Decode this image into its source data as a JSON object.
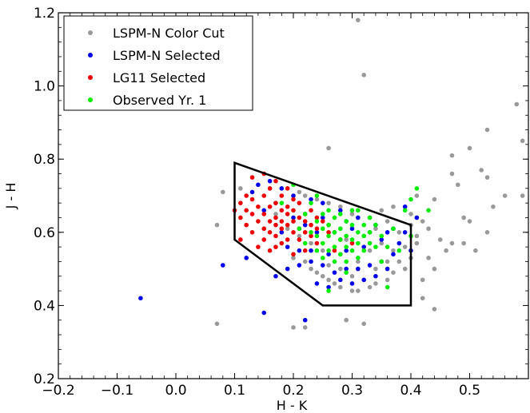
{
  "chart_data": {
    "type": "scatter",
    "xlabel": "H - K",
    "ylabel": "J - H",
    "xlim": [
      -0.2,
      0.6
    ],
    "ylim": [
      0.2,
      1.2
    ],
    "x_ticks": [
      -0.2,
      -0.1,
      0.0,
      0.1,
      0.2,
      0.3,
      0.4,
      0.5
    ],
    "x_tick_labels": [
      "−0.2",
      "−0.1",
      "0.0",
      "0.1",
      "0.2",
      "0.3",
      "0.4",
      "0.5"
    ],
    "y_ticks": [
      0.2,
      0.4,
      0.6,
      0.8,
      1.0,
      1.2
    ],
    "y_tick_labels": [
      "0.2",
      "0.4",
      "0.6",
      "0.8",
      "1.0",
      "1.2"
    ],
    "grid": false,
    "legend_position": "top-left",
    "selection_region": [
      [
        0.1,
        0.79
      ],
      [
        0.4,
        0.62
      ],
      [
        0.4,
        0.4
      ],
      [
        0.25,
        0.4
      ],
      [
        0.1,
        0.58
      ],
      [
        0.1,
        0.79
      ]
    ],
    "series": [
      {
        "name": "LSPM-N Color Cut",
        "color": "#999999",
        "points": [
          [
            0.31,
            1.18
          ],
          [
            0.32,
            1.03
          ],
          [
            0.58,
            0.95
          ],
          [
            0.59,
            0.85
          ],
          [
            0.53,
            0.88
          ],
          [
            0.5,
            0.83
          ],
          [
            0.47,
            0.81
          ],
          [
            0.52,
            0.77
          ],
          [
            0.47,
            0.76
          ],
          [
            0.48,
            0.73
          ],
          [
            0.53,
            0.75
          ],
          [
            0.56,
            0.7
          ],
          [
            0.59,
            0.7
          ],
          [
            0.54,
            0.67
          ],
          [
            0.5,
            0.63
          ],
          [
            0.49,
            0.64
          ],
          [
            0.53,
            0.6
          ],
          [
            0.47,
            0.57
          ],
          [
            0.51,
            0.55
          ],
          [
            0.43,
            0.53
          ],
          [
            0.44,
            0.5
          ],
          [
            0.42,
            0.47
          ],
          [
            0.44,
            0.39
          ],
          [
            0.42,
            0.42
          ],
          [
            0.49,
            0.57
          ],
          [
            0.26,
            0.83
          ],
          [
            0.11,
            0.72
          ],
          [
            0.08,
            0.71
          ],
          [
            0.07,
            0.62
          ],
          [
            0.07,
            0.35
          ],
          [
            0.22,
            0.34
          ],
          [
            0.2,
            0.34
          ],
          [
            0.29,
            0.36
          ],
          [
            0.32,
            0.35
          ],
          [
            0.39,
            0.56
          ],
          [
            0.4,
            0.53
          ],
          [
            0.38,
            0.52
          ],
          [
            0.37,
            0.49
          ],
          [
            0.36,
            0.47
          ],
          [
            0.34,
            0.46
          ],
          [
            0.33,
            0.45
          ],
          [
            0.31,
            0.44
          ],
          [
            0.3,
            0.44
          ],
          [
            0.28,
            0.45
          ],
          [
            0.27,
            0.46
          ],
          [
            0.26,
            0.47
          ],
          [
            0.25,
            0.48
          ],
          [
            0.24,
            0.49
          ],
          [
            0.23,
            0.5
          ],
          [
            0.35,
            0.66
          ],
          [
            0.33,
            0.64
          ],
          [
            0.3,
            0.65
          ],
          [
            0.28,
            0.67
          ],
          [
            0.26,
            0.68
          ],
          [
            0.24,
            0.69
          ],
          [
            0.22,
            0.7
          ],
          [
            0.21,
            0.71
          ],
          [
            0.36,
            0.63
          ],
          [
            0.38,
            0.6
          ],
          [
            0.4,
            0.62
          ],
          [
            0.41,
            0.59
          ],
          [
            0.42,
            0.63
          ],
          [
            0.4,
            0.65
          ],
          [
            0.37,
            0.67
          ],
          [
            0.34,
            0.61
          ],
          [
            0.32,
            0.59
          ],
          [
            0.29,
            0.58
          ],
          [
            0.27,
            0.56
          ],
          [
            0.25,
            0.55
          ],
          [
            0.23,
            0.57
          ],
          [
            0.21,
            0.59
          ],
          [
            0.19,
            0.61
          ],
          [
            0.17,
            0.65
          ],
          [
            0.2,
            0.53
          ],
          [
            0.22,
            0.52
          ],
          [
            0.31,
            0.52
          ],
          [
            0.33,
            0.55
          ],
          [
            0.35,
            0.57
          ],
          [
            0.37,
            0.55
          ],
          [
            0.39,
            0.5
          ],
          [
            0.41,
            0.57
          ],
          [
            0.43,
            0.61
          ],
          [
            0.45,
            0.58
          ],
          [
            0.46,
            0.55
          ],
          [
            0.3,
            0.48
          ],
          [
            0.28,
            0.5
          ],
          [
            0.26,
            0.51
          ],
          [
            0.36,
            0.52
          ],
          [
            0.34,
            0.5
          ],
          [
            0.44,
            0.69
          ],
          [
            0.41,
            0.7
          ]
        ]
      },
      {
        "name": "LSPM-N Selected",
        "color": "#0000ee",
        "points": [
          [
            -0.06,
            0.42
          ],
          [
            0.08,
            0.51
          ],
          [
            0.12,
            0.53
          ],
          [
            0.15,
            0.38
          ],
          [
            0.22,
            0.36
          ],
          [
            0.17,
            0.48
          ],
          [
            0.19,
            0.5
          ],
          [
            0.21,
            0.51
          ],
          [
            0.23,
            0.52
          ],
          [
            0.25,
            0.51
          ],
          [
            0.27,
            0.49
          ],
          [
            0.29,
            0.5
          ],
          [
            0.31,
            0.5
          ],
          [
            0.33,
            0.51
          ],
          [
            0.35,
            0.52
          ],
          [
            0.37,
            0.54
          ],
          [
            0.38,
            0.57
          ],
          [
            0.36,
            0.6
          ],
          [
            0.34,
            0.62
          ],
          [
            0.31,
            0.64
          ],
          [
            0.28,
            0.66
          ],
          [
            0.25,
            0.68
          ],
          [
            0.23,
            0.69
          ],
          [
            0.2,
            0.7
          ],
          [
            0.18,
            0.72
          ],
          [
            0.16,
            0.74
          ],
          [
            0.14,
            0.73
          ],
          [
            0.13,
            0.71
          ],
          [
            0.24,
            0.46
          ],
          [
            0.26,
            0.45
          ],
          [
            0.28,
            0.47
          ],
          [
            0.3,
            0.46
          ],
          [
            0.32,
            0.47
          ],
          [
            0.34,
            0.48
          ],
          [
            0.36,
            0.5
          ],
          [
            0.39,
            0.6
          ],
          [
            0.41,
            0.64
          ],
          [
            0.19,
            0.56
          ],
          [
            0.21,
            0.55
          ],
          [
            0.23,
            0.55
          ],
          [
            0.26,
            0.54
          ],
          [
            0.29,
            0.55
          ],
          [
            0.32,
            0.56
          ],
          [
            0.35,
            0.58
          ],
          [
            0.37,
            0.61
          ],
          [
            0.22,
            0.62
          ],
          [
            0.24,
            0.6
          ],
          [
            0.27,
            0.6
          ],
          [
            0.3,
            0.61
          ],
          [
            0.33,
            0.6
          ],
          [
            0.18,
            0.6
          ],
          [
            0.2,
            0.64
          ],
          [
            0.25,
            0.64
          ],
          [
            0.29,
            0.63
          ],
          [
            0.15,
            0.66
          ],
          [
            0.17,
            0.68
          ],
          [
            0.39,
            0.67
          ],
          [
            0.4,
            0.55
          ]
        ]
      },
      {
        "name": "LG11 Selected",
        "color": "#ee0000",
        "points": [
          [
            0.1,
            0.66
          ],
          [
            0.11,
            0.64
          ],
          [
            0.11,
            0.68
          ],
          [
            0.12,
            0.62
          ],
          [
            0.12,
            0.66
          ],
          [
            0.13,
            0.6
          ],
          [
            0.13,
            0.65
          ],
          [
            0.13,
            0.69
          ],
          [
            0.14,
            0.63
          ],
          [
            0.14,
            0.67
          ],
          [
            0.15,
            0.58
          ],
          [
            0.15,
            0.61
          ],
          [
            0.15,
            0.65
          ],
          [
            0.15,
            0.7
          ],
          [
            0.16,
            0.6
          ],
          [
            0.16,
            0.63
          ],
          [
            0.16,
            0.67
          ],
          [
            0.16,
            0.72
          ],
          [
            0.17,
            0.59
          ],
          [
            0.17,
            0.62
          ],
          [
            0.17,
            0.64
          ],
          [
            0.17,
            0.68
          ],
          [
            0.17,
            0.74
          ],
          [
            0.18,
            0.57
          ],
          [
            0.18,
            0.61
          ],
          [
            0.18,
            0.63
          ],
          [
            0.18,
            0.66
          ],
          [
            0.18,
            0.7
          ],
          [
            0.19,
            0.58
          ],
          [
            0.19,
            0.62
          ],
          [
            0.19,
            0.65
          ],
          [
            0.19,
            0.67
          ],
          [
            0.19,
            0.72
          ],
          [
            0.2,
            0.6
          ],
          [
            0.2,
            0.63
          ],
          [
            0.2,
            0.66
          ],
          [
            0.2,
            0.69
          ],
          [
            0.21,
            0.58
          ],
          [
            0.21,
            0.61
          ],
          [
            0.21,
            0.64
          ],
          [
            0.21,
            0.68
          ],
          [
            0.22,
            0.6
          ],
          [
            0.22,
            0.63
          ],
          [
            0.22,
            0.65
          ],
          [
            0.23,
            0.59
          ],
          [
            0.23,
            0.62
          ],
          [
            0.23,
            0.66
          ],
          [
            0.24,
            0.61
          ],
          [
            0.24,
            0.64
          ],
          [
            0.25,
            0.63
          ],
          [
            0.11,
            0.58
          ],
          [
            0.14,
            0.56
          ],
          [
            0.16,
            0.55
          ],
          [
            0.13,
            0.75
          ],
          [
            0.15,
            0.76
          ],
          [
            0.12,
            0.7
          ],
          [
            0.26,
            0.6
          ],
          [
            0.27,
            0.55
          ],
          [
            0.28,
            0.58
          ],
          [
            0.22,
            0.55
          ],
          [
            0.24,
            0.57
          ],
          [
            0.3,
            0.57
          ],
          [
            0.17,
            0.56
          ],
          [
            0.2,
            0.54
          ],
          [
            0.26,
            0.62
          ]
        ]
      },
      {
        "name": "Observed Yr. 1",
        "color": "#00ee00",
        "points": [
          [
            0.21,
            0.61
          ],
          [
            0.22,
            0.57
          ],
          [
            0.22,
            0.65
          ],
          [
            0.23,
            0.6
          ],
          [
            0.23,
            0.68
          ],
          [
            0.24,
            0.55
          ],
          [
            0.24,
            0.59
          ],
          [
            0.24,
            0.63
          ],
          [
            0.25,
            0.53
          ],
          [
            0.25,
            0.57
          ],
          [
            0.25,
            0.61
          ],
          [
            0.25,
            0.65
          ],
          [
            0.26,
            0.55
          ],
          [
            0.26,
            0.59
          ],
          [
            0.26,
            0.62
          ],
          [
            0.26,
            0.66
          ],
          [
            0.27,
            0.52
          ],
          [
            0.27,
            0.56
          ],
          [
            0.27,
            0.6
          ],
          [
            0.27,
            0.64
          ],
          [
            0.28,
            0.54
          ],
          [
            0.28,
            0.58
          ],
          [
            0.28,
            0.61
          ],
          [
            0.28,
            0.65
          ],
          [
            0.29,
            0.52
          ],
          [
            0.29,
            0.56
          ],
          [
            0.29,
            0.59
          ],
          [
            0.29,
            0.63
          ],
          [
            0.3,
            0.55
          ],
          [
            0.3,
            0.58
          ],
          [
            0.3,
            0.62
          ],
          [
            0.3,
            0.66
          ],
          [
            0.31,
            0.53
          ],
          [
            0.31,
            0.57
          ],
          [
            0.31,
            0.6
          ],
          [
            0.32,
            0.55
          ],
          [
            0.32,
            0.59
          ],
          [
            0.32,
            0.62
          ],
          [
            0.33,
            0.57
          ],
          [
            0.33,
            0.6
          ],
          [
            0.34,
            0.56
          ],
          [
            0.34,
            0.62
          ],
          [
            0.35,
            0.59
          ],
          [
            0.36,
            0.56
          ],
          [
            0.37,
            0.61
          ],
          [
            0.4,
            0.69
          ],
          [
            0.41,
            0.72
          ],
          [
            0.43,
            0.66
          ],
          [
            0.4,
            0.59
          ],
          [
            0.39,
            0.66
          ],
          [
            0.36,
            0.45
          ],
          [
            0.38,
            0.55
          ],
          [
            0.35,
            0.52
          ],
          [
            0.26,
            0.44
          ],
          [
            0.2,
            0.73
          ],
          [
            0.18,
            0.68
          ],
          [
            0.29,
            0.49
          ],
          [
            0.24,
            0.7
          ],
          [
            0.31,
            0.66
          ],
          [
            0.33,
            0.64
          ]
        ]
      }
    ]
  }
}
